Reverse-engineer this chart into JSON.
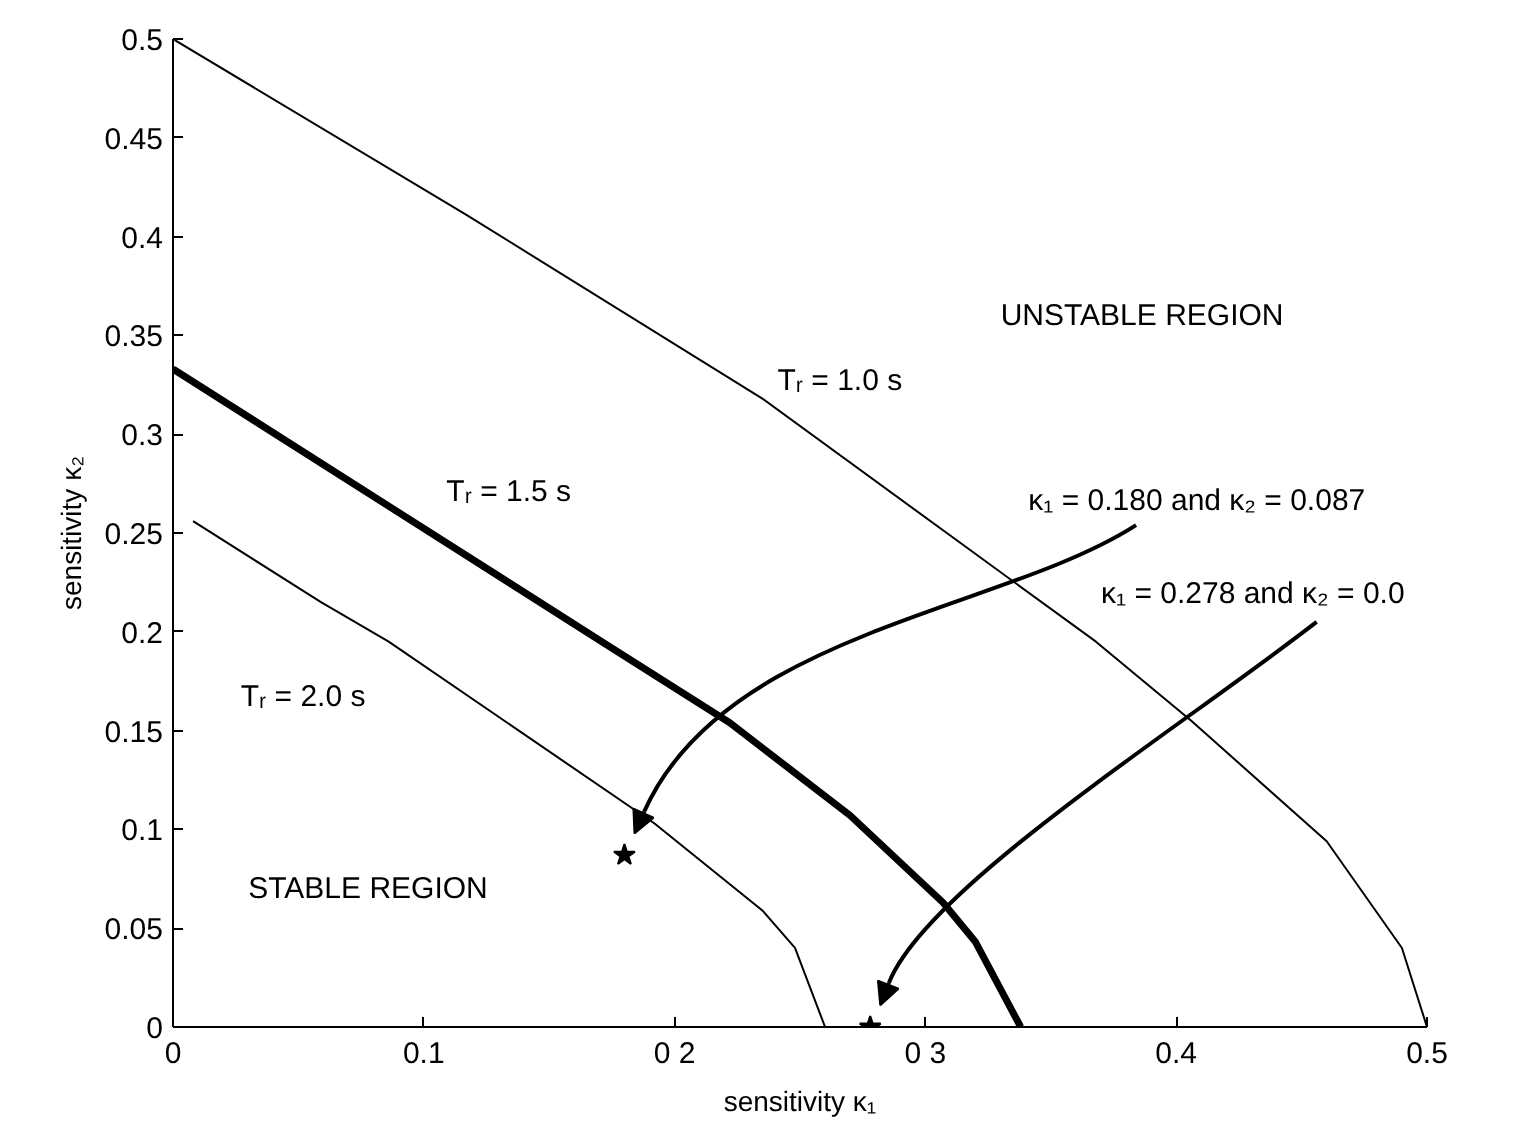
{
  "chart_data": {
    "type": "line",
    "xlabel": "sensitivity κ₁",
    "ylabel": "sensitivity κ₂",
    "xlim": [
      0,
      0.5
    ],
    "ylim": [
      0,
      0.5
    ],
    "xticks": [
      0,
      0.1,
      {
        "value": 0.2,
        "label": "0 2"
      },
      {
        "value": 0.3,
        "label": "0 3"
      },
      0.4,
      0.5
    ],
    "yticks": [
      0,
      0.05,
      0.1,
      0.15,
      0.2,
      0.25,
      0.3,
      0.35,
      0.4,
      0.45,
      0.5
    ],
    "grid": false,
    "legend": false,
    "marker": "none",
    "line_style": "solid",
    "series": [
      {
        "name": "Tᵣ = 1.0 s",
        "color": "#000000",
        "x": [
          0,
          0.117,
          0.235,
          0.368,
          0.406,
          0.46,
          0.49,
          0.5
        ],
        "values": [
          0.5,
          0.411,
          0.318,
          0.195,
          0.155,
          0.094,
          0.04,
          0
        ]
      },
      {
        "name": "Tᵣ = 1.5 s",
        "color": "#000000",
        "x": [
          0,
          0.171,
          0.222,
          0.27,
          0.307,
          0.32,
          0.338
        ],
        "values": [
          0.333,
          0.195,
          0.154,
          0.107,
          0.063,
          0.043,
          0
        ]
      },
      {
        "name": "Tᵣ = 2.0 s",
        "color": "#000000",
        "x": [
          0.008,
          0.059,
          0.086,
          0.192,
          0.235,
          0.248,
          0.26
        ],
        "values": [
          0.256,
          0.215,
          0.195,
          0.103,
          0.059,
          0.04,
          0
        ]
      },
      {
        "type": "scatter",
        "marker": "star",
        "color": "#000000",
        "x": [
          0.18,
          0.278
        ],
        "values": [
          0.087,
          0
        ]
      }
    ],
    "annotations": [
      "UNSTABLE REGION",
      "STABLE REGION",
      "κ₁ = 0.180 and κ₂ = 0.087",
      "κ₁ = 0.278 and κ₂ = 0.0"
    ]
  }
}
